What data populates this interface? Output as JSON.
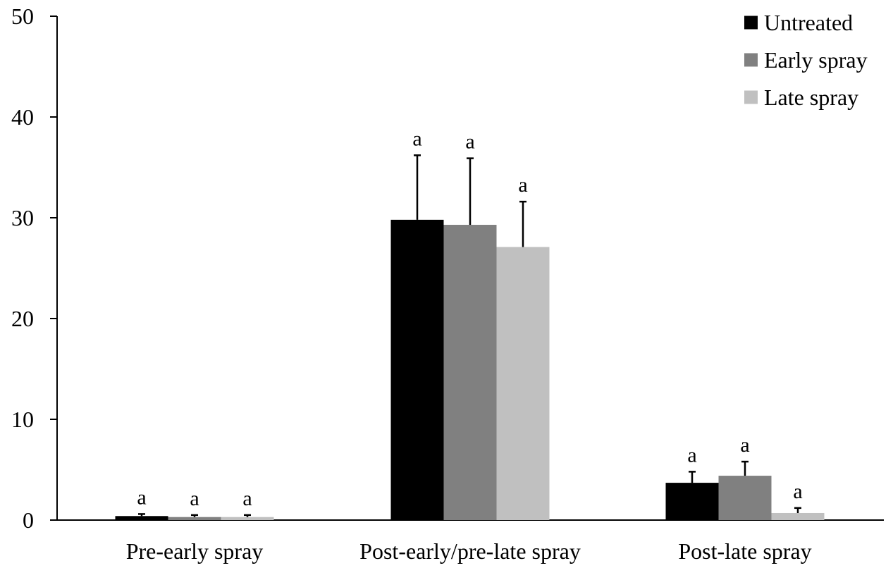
{
  "chart_data": {
    "type": "bar",
    "title": "",
    "xlabel": "",
    "ylabel": "",
    "ylim": [
      0,
      50
    ],
    "yticks": [
      0,
      10,
      20,
      30,
      40,
      50
    ],
    "categories": [
      "Pre-early spray",
      "Post-early/pre-late spray",
      "Post-late spray"
    ],
    "series": [
      {
        "name": "Untreated",
        "color": "#000000",
        "values": [
          0.4,
          29.8,
          3.7
        ],
        "errors": [
          0.2,
          6.4,
          1.1
        ],
        "significance": [
          "a",
          "a",
          "a"
        ]
      },
      {
        "name": "Early spray",
        "color": "#808080",
        "values": [
          0.3,
          29.3,
          4.4
        ],
        "errors": [
          0.2,
          6.6,
          1.4
        ],
        "significance": [
          "a",
          "a",
          "a"
        ]
      },
      {
        "name": "Late spray",
        "color": "#c0c0c0",
        "values": [
          0.3,
          27.1,
          0.7
        ],
        "errors": [
          0.2,
          4.5,
          0.5
        ],
        "significance": [
          "a",
          "a",
          "a"
        ]
      }
    ],
    "legend_position": "top-right",
    "grid": false
  }
}
